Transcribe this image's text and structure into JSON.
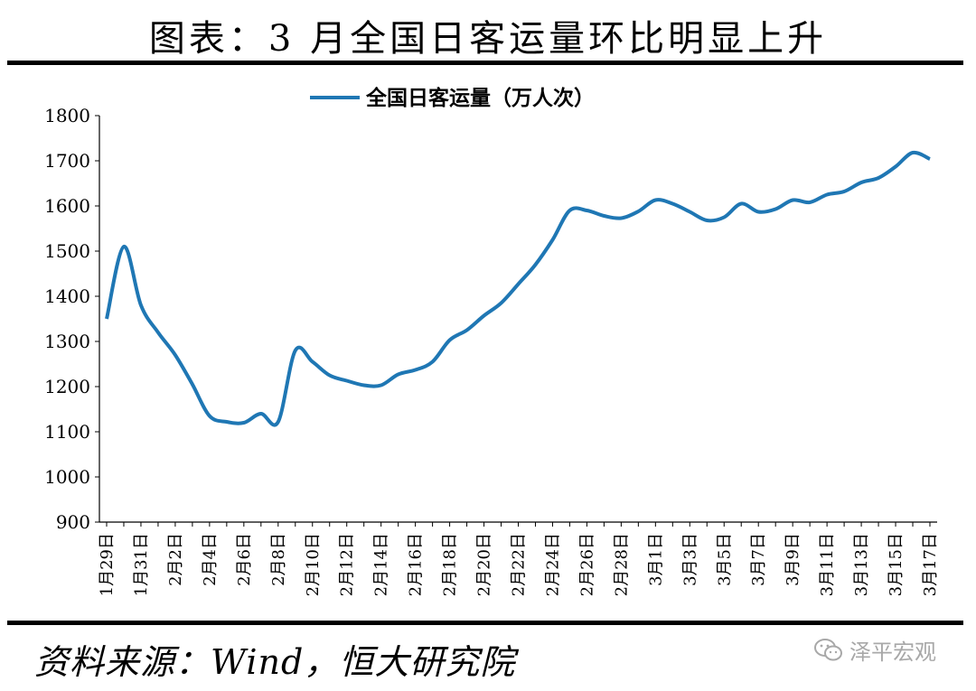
{
  "header": {
    "title": "图表：3 月全国日客运量环比明显上升"
  },
  "footer": {
    "source": "资料来源：Wind，恒大研究院",
    "watermark": "泽平宏观",
    "watermark_icon": "wechat-icon"
  },
  "chart_data": {
    "type": "line",
    "title": "",
    "xlabel": "",
    "ylabel": "",
    "ylim": [
      900,
      1800
    ],
    "yticks": [
      900,
      1000,
      1100,
      1200,
      1300,
      1400,
      1500,
      1600,
      1700,
      1800
    ],
    "grid": false,
    "legend_position": "top-center",
    "x_tick_labels": [
      "1月29日",
      "1月31日",
      "2月2日",
      "2月4日",
      "2月6日",
      "2月8日",
      "2月10日",
      "2月12日",
      "2月14日",
      "2月16日",
      "2月18日",
      "2月20日",
      "2月22日",
      "2月24日",
      "2月26日",
      "2月28日",
      "3月1日",
      "3月3日",
      "3月5日",
      "3月7日",
      "3月9日",
      "3月11日",
      "3月13日",
      "3月15日",
      "3月17日"
    ],
    "categories": [
      "1月29日",
      "1月30日",
      "1月31日",
      "2月1日",
      "2月2日",
      "2月3日",
      "2月4日",
      "2月5日",
      "2月6日",
      "2月7日",
      "2月8日",
      "2月9日",
      "2月10日",
      "2月11日",
      "2月12日",
      "2月13日",
      "2月14日",
      "2月15日",
      "2月16日",
      "2月17日",
      "2月18日",
      "2月19日",
      "2月20日",
      "2月21日",
      "2月22日",
      "2月23日",
      "2月24日",
      "2月25日",
      "2月26日",
      "2月27日",
      "2月28日",
      "2月29日",
      "3月1日",
      "3月2日",
      "3月3日",
      "3月4日",
      "3月5日",
      "3月6日",
      "3月7日",
      "3月8日",
      "3月9日",
      "3月10日",
      "3月11日",
      "3月12日",
      "3月13日",
      "3月14日",
      "3月15日",
      "3月16日",
      "3月17日"
    ],
    "series": [
      {
        "name": "全国日客运量（万人次）",
        "color": "#1f77b4",
        "values": [
          1350,
          1510,
          1380,
          1320,
          1270,
          1205,
          1135,
          1122,
          1120,
          1140,
          1122,
          1280,
          1255,
          1225,
          1213,
          1203,
          1203,
          1227,
          1237,
          1255,
          1303,
          1325,
          1357,
          1385,
          1427,
          1470,
          1525,
          1590,
          1590,
          1578,
          1573,
          1588,
          1613,
          1605,
          1587,
          1568,
          1575,
          1605,
          1587,
          1593,
          1613,
          1608,
          1625,
          1632,
          1652,
          1662,
          1687,
          1718,
          1704
        ]
      }
    ]
  }
}
